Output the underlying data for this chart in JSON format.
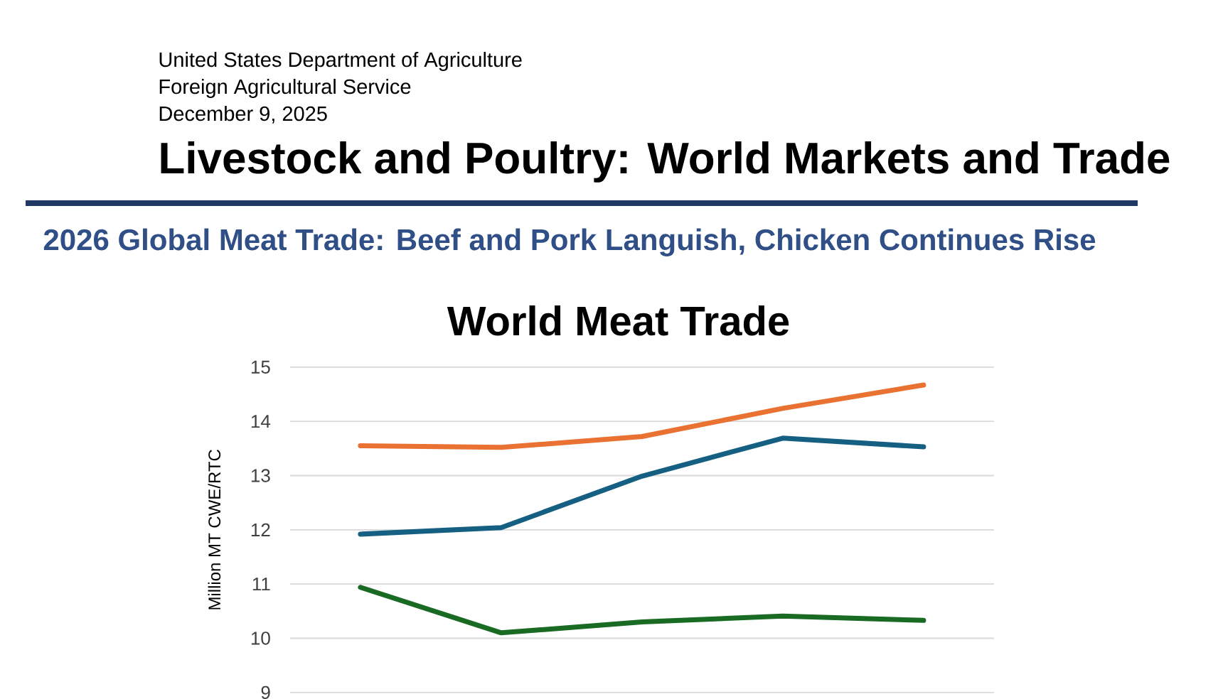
{
  "chart_data": {
    "type": "line",
    "title": "World Meat Trade",
    "subtitle": "2026 Global Meat Trade: Beef and Pork Languish, Chicken Continues Rise",
    "ylabel": "Million MT CWE/RTC",
    "annotations": [
      "United States Department of Agriculture",
      "Foreign Agricultural Service",
      "December 9, 2025",
      "Livestock and Poultry: World Markets and Trade"
    ],
    "categories": [
      null,
      null,
      null,
      null,
      null
    ],
    "series": [
      {
        "color": "#e97132",
        "values": [
          13.55,
          13.52,
          13.72,
          14.24,
          14.67
        ]
      },
      {
        "color": "#156082",
        "values": [
          11.92,
          12.04,
          12.99,
          13.69,
          13.53
        ]
      },
      {
        "color": "#196b24",
        "values": [
          10.94,
          10.1,
          10.3,
          10.41,
          10.33
        ]
      }
    ],
    "ylim": [
      9,
      15
    ],
    "yticks": [
      9,
      10,
      11,
      12,
      13,
      14,
      15
    ],
    "grid": "y",
    "tick_labels": "y",
    "marker": "none",
    "line_style": "solid"
  }
}
